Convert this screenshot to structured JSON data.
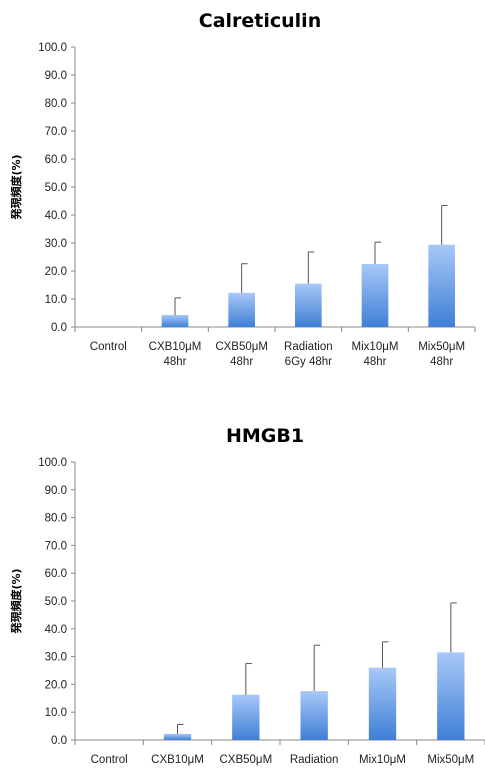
{
  "colors": {
    "bar_top": "#a8c8f8",
    "bar_bottom": "#3f7fd6",
    "axis": "#888888",
    "error": "#555555"
  },
  "chart_data": [
    {
      "type": "bar",
      "title": "Calreticulin",
      "ylabel": "発現頻度(%)",
      "xlabel": "",
      "ylim": [
        0,
        100
      ],
      "yticks": [
        "0.0",
        "10.0",
        "20.0",
        "30.0",
        "40.0",
        "50.0",
        "60.0",
        "70.0",
        "80.0",
        "90.0",
        "100.0"
      ],
      "categories": [
        [
          "Control"
        ],
        [
          "CXB10μM",
          "48hr"
        ],
        [
          "CXB50μM",
          "48hr"
        ],
        [
          "Radiation",
          "6Gy 48hr"
        ],
        [
          "Mix10μM",
          "48hr"
        ],
        [
          "Mix50μM",
          "48hr"
        ]
      ],
      "values": [
        0,
        4.3,
        12.2,
        15.5,
        22.5,
        29.4
      ],
      "errors": [
        0,
        6.1,
        10.4,
        11.3,
        7.8,
        14.0
      ],
      "grid": false,
      "legend": "none"
    },
    {
      "type": "bar",
      "title": "HMGB1",
      "ylabel": "発現頻度(%)",
      "xlabel": "",
      "ylim": [
        0,
        100
      ],
      "yticks": [
        "0.0",
        "10.0",
        "20.0",
        "30.0",
        "40.0",
        "50.0",
        "60.0",
        "70.0",
        "80.0",
        "90.0",
        "100.0"
      ],
      "categories": [
        [
          "Control"
        ],
        [
          "CXB10μM"
        ],
        [
          "CXB50μM"
        ],
        [
          "Radiation"
        ],
        [
          "Mix10μM"
        ],
        [
          "Mix50μM"
        ]
      ],
      "values": [
        0,
        2.2,
        16.3,
        17.6,
        26.0,
        31.5
      ],
      "errors": [
        0,
        3.4,
        11.2,
        16.5,
        9.3,
        17.8
      ],
      "grid": false,
      "legend": "none"
    }
  ]
}
